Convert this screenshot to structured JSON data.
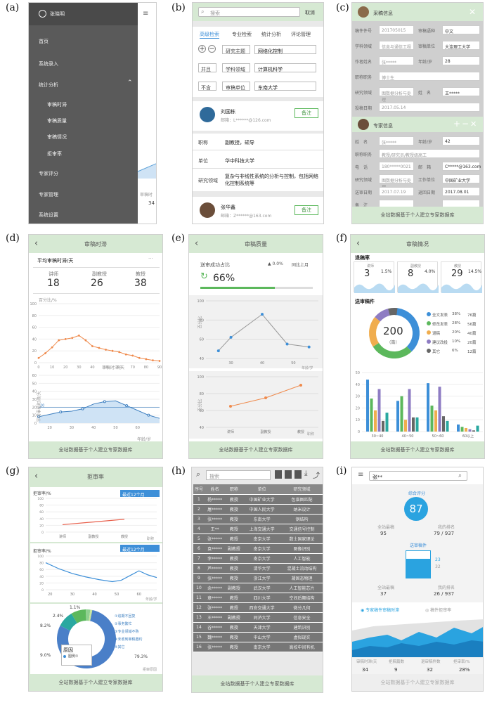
{
  "panels": {
    "a": "(a)",
    "b": "(b)",
    "c": "(c)",
    "d": "(d)",
    "e": "(e)",
    "f": "(f)",
    "g": "(g)",
    "h": "(h)",
    "i": "(i)"
  },
  "footer": "全站数据基于个人建立专家数据库",
  "a": {
    "user": "张晓明",
    "menu": [
      "首页",
      "系统录入",
      "统计分析",
      "审稿时滞",
      "审稿质量",
      "审稿情况",
      "拒审率",
      "专家评分",
      "专家管理",
      "系统设置"
    ],
    "peek": "审稿时",
    "peek_val": "34"
  },
  "b": {
    "search_ph": "搜索",
    "cancel": "取消",
    "tabs": [
      "高级检索",
      "专业检索",
      "统计分析",
      "评论管理"
    ],
    "crit": [
      {
        "op": "",
        "field": "研究主题",
        "value": "网络化控制"
      },
      {
        "op": "并且",
        "field": "学科领域",
        "value": "计算机科学"
      },
      {
        "op": "不含",
        "field": "审稿单位",
        "value": "东南大学"
      }
    ],
    "p1": {
      "name": "刘国栋",
      "email": "邮箱：L******@126.com",
      "btn": "备注"
    },
    "details": [
      {
        "k": "职称",
        "v": "副教授，硕导"
      },
      {
        "k": "单位",
        "v": "华中科技大学"
      },
      {
        "k": "研究领域",
        "v": "复杂与非线性系统的分析与控制，包括网络化控制系统等"
      }
    ],
    "p2": {
      "name": "张华鑫",
      "email": "邮箱：Z******@163.com",
      "btn": "备注"
    }
  },
  "c": {
    "title1": "采稿信息",
    "f1": [
      [
        "稿件件号",
        "201705015",
        "审稿语种",
        "中文"
      ],
      [
        "学科领域",
        "信息与通信工程",
        "审稿单位",
        "大连理工大学"
      ],
      [
        "作者姓名",
        "张*****",
        "年龄/岁",
        "28"
      ],
      [
        "职称职务",
        "博士生",
        "",
        ""
      ],
      [
        "研究领域",
        "图数据分析与处理",
        "姓　名",
        "王*****"
      ],
      [
        "投稿日期",
        "2017.05.14",
        "",
        ""
      ]
    ],
    "title2": "专家信息",
    "f2": [
      [
        "姓　名",
        "张*****",
        "年龄/岁",
        "42"
      ],
      [
        "职称职务",
        "教授/研究员/教授级高工",
        "",
        ""
      ],
      [
        "电　话",
        "180*****0021",
        "邮　箱",
        "C*****@163.com"
      ],
      [
        "研究领域",
        "图数据分析与处理",
        "工作单位",
        "中国矿业大学"
      ],
      [
        "送审日期",
        "2017.07.19",
        "返回日期",
        "2017.08.01"
      ],
      [
        "备　注",
        "",
        "",
        " "
      ]
    ]
  },
  "d": {
    "title": "审稿时滞",
    "sub": "平均审稿时滞/天",
    "cards": [
      {
        "l": "讲师",
        "v": "18"
      },
      {
        "l": "副教授",
        "v": "26"
      },
      {
        "l": "教授",
        "v": "38"
      }
    ],
    "c1_ylab": "百分比/%",
    "c1_xlab": "审稿时滞/天",
    "c2_ylab": "平均审稿时滞/天",
    "c2_xlab": "年龄/岁"
  },
  "e": {
    "title": "审稿质量",
    "label": "送审成功占比",
    "change": "▲ 0.0%",
    "change_lab": "同比上月",
    "pct": "66%",
    "c1_xlab": "年龄/岁",
    "c1_ylab": "百分比",
    "c2_xlab": "职称",
    "c2_ylab": "百分比"
  },
  "f": {
    "title": "审稿情况",
    "sec1": "退稿率",
    "cards": [
      {
        "l": "讲师",
        "v": "3",
        "p": "1.5%"
      },
      {
        "l": "副教授",
        "v": "8",
        "p": "4.0%"
      },
      {
        "l": "教授",
        "v": "29",
        "p": "14.5%"
      }
    ],
    "sec2": "送审稿件",
    "total": "200",
    "unit": "(篇)",
    "legend": [
      {
        "n": "全文发表",
        "p": "38%",
        "c": "76篇",
        "col": "#3d8fd8"
      },
      {
        "n": "修改发表",
        "p": "28%",
        "c": "56篇",
        "col": "#5cb85c"
      },
      {
        "n": "退稿",
        "p": "20%",
        "c": "40篇",
        "col": "#f0ad4e"
      },
      {
        "n": "建议改投",
        "p": "10%",
        "c": "20篇",
        "col": "#8e7cc3"
      },
      {
        "n": "其它",
        "p": "6%",
        "c": "12篇",
        "col": "#666666"
      }
    ],
    "xcats": [
      "30~40",
      "40~50",
      "50~60",
      "60以上"
    ]
  },
  "g": {
    "title": "拒审率",
    "c1_ylab": "拒审率/%",
    "c1_xlab": "职称",
    "sel": "最近12个月",
    "c2_ylab": "拒审率/%",
    "c2_xlab": "年龄/岁",
    "reason": "原因",
    "reason_leg": "图例①",
    "legend": [
      "①追期不回复",
      "②事务繁忙",
      "③专业领域不熟",
      "④未收到审稿邀约",
      "⑤其它"
    ],
    "labels": [
      "1.1%",
      "2.4%",
      "8.2%",
      "9.0%",
      "79.3%"
    ],
    "cap": "拒审原因"
  },
  "h": {
    "search_ph": "搜索",
    "headers": [
      "序号",
      "姓名",
      "职称",
      "单位",
      "研究领域"
    ],
    "rows": [
      [
        "1",
        "杨*****",
        "教授",
        "中国矿业大学",
        "色谱图匹配"
      ],
      [
        "2",
        "屠*****",
        "教授",
        "中国人民大学",
        "纳米设计"
      ],
      [
        "3",
        "张*****",
        "教授",
        "东南大学",
        "钢结构"
      ],
      [
        "4",
        "王**",
        "教授",
        "上海交通大学",
        "交通信号控制"
      ],
      [
        "5",
        "张*****",
        "教授",
        "南京大学",
        "数士国家理论"
      ],
      [
        "6",
        "袁*****",
        "副教授",
        "南京大学",
        "图像识别"
      ],
      [
        "7",
        "李*****",
        "教授",
        "南京大学",
        "人工智能"
      ],
      [
        "8",
        "芦*****",
        "教授",
        "清华大学",
        "混凝土流动结构"
      ],
      [
        "9",
        "张*****",
        "教授",
        "浙江大学",
        "凝固态物理"
      ],
      [
        "10",
        "余*****",
        "副教授",
        "武汉大学",
        "人工智能芯片"
      ],
      [
        "11",
        "章*****",
        "教授",
        "四川大学",
        "空间后舞结构"
      ],
      [
        "12",
        "张*****",
        "教授",
        "西安交通大学",
        "微分几何"
      ],
      [
        "13",
        "王*****",
        "副教授",
        "同济大学",
        "信息安全"
      ],
      [
        "14",
        "谷*****",
        "教授",
        "天津大学",
        "建筑识别"
      ],
      [
        "15",
        "魏*****",
        "教授",
        "中山大学",
        "虚拟现实"
      ],
      [
        "16",
        "张*****",
        "教授",
        "南京大学",
        "高校中间有机"
      ]
    ]
  },
  "i": {
    "search_val": "张**",
    "score_lab": "综合评分",
    "score": "87",
    "s1": [
      {
        "l": "全站最稿",
        "v": "95"
      },
      {
        "l": "我的排名",
        "v": "79 / 937"
      }
    ],
    "mid_lab": "送审稿件",
    "mid_top": "23",
    "mid_bot": "32",
    "s2": [
      {
        "l": "全站最稿",
        "v": "37"
      },
      {
        "l": "我的排名",
        "v": "26 / 937"
      }
    ],
    "tabs": [
      "专家稿件审稿时滞",
      "稿件拒审率"
    ],
    "bottom": [
      {
        "l": "审稿时滞/天",
        "v": "34"
      },
      {
        "l": "拒稿篇数",
        "v": "9"
      },
      {
        "l": "退审稿件数",
        "v": "32"
      },
      {
        "l": "拒审率/%",
        "v": "28%"
      }
    ]
  }
}
